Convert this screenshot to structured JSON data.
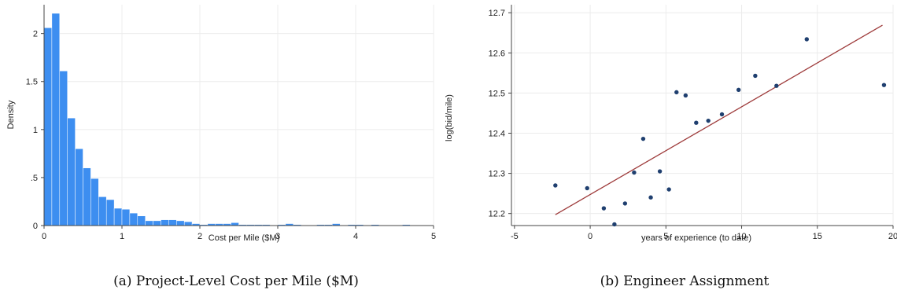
{
  "chart_data": [
    {
      "type": "bar",
      "subtype": "histogram",
      "caption": "(a) Project-Level Cost per Mile ($M)",
      "xlabel": "Cost per Mile ($M)",
      "ylabel": "Density",
      "xlim": [
        0,
        5
      ],
      "ylim": [
        0,
        2.3
      ],
      "xticks": [
        "0",
        "1",
        "2",
        "3",
        "4",
        "5"
      ],
      "yticks": [
        "0",
        ".5",
        "1",
        "1.5",
        "2"
      ],
      "bin_width": 0.1,
      "bar_color": "#3d8ef0",
      "grid": true,
      "values": [
        2.06,
        2.21,
        1.61,
        1.12,
        0.8,
        0.6,
        0.49,
        0.3,
        0.27,
        0.18,
        0.17,
        0.13,
        0.1,
        0.05,
        0.05,
        0.06,
        0.06,
        0.05,
        0.04,
        0.02,
        0.01,
        0.02,
        0.02,
        0.02,
        0.03,
        0.01,
        0.01,
        0.01,
        0.01,
        0.0,
        0.01,
        0.02,
        0.01,
        0.0,
        0.0,
        0.01,
        0.01,
        0.02,
        0.0,
        0.01,
        0.01,
        0.0,
        0.01,
        0.0,
        0.0,
        0.0,
        0.01,
        0.0,
        0.0,
        0.0
      ]
    },
    {
      "type": "scatter",
      "caption": "(b) Engineer Assignment",
      "xlabel": "years of experience (to date)",
      "ylabel": "log(bid/mile)",
      "xlim": [
        -5.2,
        20
      ],
      "ylim": [
        12.17,
        12.72
      ],
      "xticks": [
        "-5",
        "0",
        "5",
        "10",
        "15",
        "20"
      ],
      "yticks": [
        "12.2",
        "12.3",
        "12.4",
        "12.5",
        "12.6",
        "12.7"
      ],
      "grid": true,
      "point_color": "#1f3f6f",
      "line_color": "#9e3b3b",
      "points": [
        {
          "x": -2.3,
          "y": 12.27
        },
        {
          "x": -0.2,
          "y": 12.263
        },
        {
          "x": 0.9,
          "y": 12.213
        },
        {
          "x": 1.6,
          "y": 12.173
        },
        {
          "x": 2.3,
          "y": 12.225
        },
        {
          "x": 2.9,
          "y": 12.302
        },
        {
          "x": 3.5,
          "y": 12.386
        },
        {
          "x": 4.0,
          "y": 12.24
        },
        {
          "x": 4.6,
          "y": 12.305
        },
        {
          "x": 5.2,
          "y": 12.26
        },
        {
          "x": 5.7,
          "y": 12.502
        },
        {
          "x": 6.3,
          "y": 12.494
        },
        {
          "x": 7.0,
          "y": 12.426
        },
        {
          "x": 7.8,
          "y": 12.431
        },
        {
          "x": 8.7,
          "y": 12.447
        },
        {
          "x": 9.8,
          "y": 12.508
        },
        {
          "x": 10.9,
          "y": 12.543
        },
        {
          "x": 12.3,
          "y": 12.518
        },
        {
          "x": 14.3,
          "y": 12.634
        },
        {
          "x": 19.4,
          "y": 12.52
        }
      ],
      "fit_line": [
        {
          "x": -2.3,
          "y": 12.197
        },
        {
          "x": 19.3,
          "y": 12.669
        }
      ]
    }
  ]
}
